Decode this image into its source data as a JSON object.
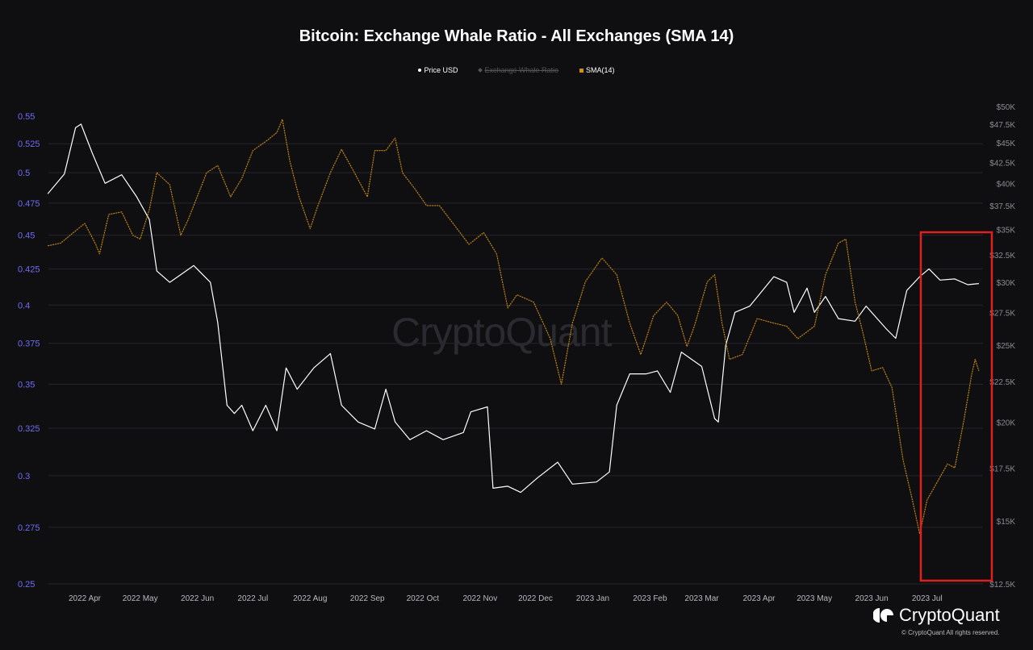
{
  "chart_data": {
    "type": "line",
    "title": "Bitcoin: Exchange Whale Ratio - All Exchanges (SMA 14)",
    "legend": [
      {
        "name": "Price USD",
        "color": "#ffffff",
        "visible": true
      },
      {
        "name": "Exchange Whale Ratio",
        "color": "#555555",
        "visible": false
      },
      {
        "name": "SMA(14)",
        "color": "#d4900a",
        "visible": true
      }
    ],
    "legend_position": "top-center",
    "grid": true,
    "x_ticks": [
      "2022 Apr",
      "2022 May",
      "2022 Jun",
      "2022 Jul",
      "2022 Aug",
      "2022 Sep",
      "2022 Oct",
      "2022 Nov",
      "2022 Dec",
      "2023 Jan",
      "2023 Feb",
      "2023 Mar",
      "2023 Apr",
      "2023 May",
      "2023 Jun",
      "2023 Jul"
    ],
    "y_left": {
      "scale": "log",
      "range": [
        0.25,
        0.55
      ],
      "ticks": [
        "0.55",
        "0.525",
        "0.5",
        "0.475",
        "0.45",
        "0.425",
        "0.4",
        "0.375",
        "0.35",
        "0.325",
        "0.3",
        "0.275",
        "0.25"
      ],
      "color": "#6f6cf2"
    },
    "y_right": {
      "scale": "log",
      "range": [
        12500,
        50000
      ],
      "ticks": [
        "$50K",
        "$47.5K",
        "$45K",
        "$42.5K",
        "$40K",
        "$37.5K",
        "$35K",
        "$32.5K",
        "$30K",
        "$27.5K",
        "$25K",
        "$22.5K",
        "$20K",
        "$17.5K",
        "$15K",
        "$12.5K"
      ]
    },
    "series": [
      {
        "name": "Price USD",
        "axis": "right",
        "color": "#ffffff",
        "points": [
          [
            "2022-03-12",
            38800
          ],
          [
            "2022-03-21",
            41100
          ],
          [
            "2022-03-27",
            47000
          ],
          [
            "2022-03-30",
            47500
          ],
          [
            "2022-04-05",
            43700
          ],
          [
            "2022-04-12",
            40000
          ],
          [
            "2022-04-21",
            41000
          ],
          [
            "2022-04-29",
            38500
          ],
          [
            "2022-05-06",
            36000
          ],
          [
            "2022-05-10",
            31000
          ],
          [
            "2022-05-17",
            30000
          ],
          [
            "2022-05-30",
            31500
          ],
          [
            "2022-06-08",
            30000
          ],
          [
            "2022-06-12",
            26700
          ],
          [
            "2022-06-17",
            21000
          ],
          [
            "2022-06-21",
            20500
          ],
          [
            "2022-06-25",
            21000
          ],
          [
            "2022-07-01",
            19500
          ],
          [
            "2022-07-08",
            21000
          ],
          [
            "2022-07-14",
            19500
          ],
          [
            "2022-07-19",
            23400
          ],
          [
            "2022-07-25",
            22000
          ],
          [
            "2022-08-03",
            23400
          ],
          [
            "2022-08-12",
            24400
          ],
          [
            "2022-08-18",
            21000
          ],
          [
            "2022-08-27",
            20000
          ],
          [
            "2022-09-05",
            19600
          ],
          [
            "2022-09-11",
            22000
          ],
          [
            "2022-09-16",
            20000
          ],
          [
            "2022-09-24",
            19000
          ],
          [
            "2022-10-03",
            19500
          ],
          [
            "2022-10-12",
            19000
          ],
          [
            "2022-10-23",
            19400
          ],
          [
            "2022-10-27",
            20600
          ],
          [
            "2022-11-05",
            20900
          ],
          [
            "2022-11-08",
            16500
          ],
          [
            "2022-11-16",
            16600
          ],
          [
            "2022-11-23",
            16300
          ],
          [
            "2022-12-02",
            17000
          ],
          [
            "2022-12-13",
            17800
          ],
          [
            "2022-12-21",
            16700
          ],
          [
            "2023-01-03",
            16800
          ],
          [
            "2023-01-10",
            17300
          ],
          [
            "2023-01-14",
            21000
          ],
          [
            "2023-01-21",
            23000
          ],
          [
            "2023-01-30",
            23000
          ],
          [
            "2023-02-05",
            23200
          ],
          [
            "2023-02-12",
            21800
          ],
          [
            "2023-02-18",
            24500
          ],
          [
            "2023-03-01",
            23500
          ],
          [
            "2023-03-08",
            20200
          ],
          [
            "2023-03-10",
            20000
          ],
          [
            "2023-03-14",
            25000
          ],
          [
            "2023-03-19",
            27500
          ],
          [
            "2023-03-27",
            28000
          ],
          [
            "2023-04-09",
            30500
          ],
          [
            "2023-04-16",
            30000
          ],
          [
            "2023-04-20",
            27500
          ],
          [
            "2023-04-27",
            29500
          ],
          [
            "2023-05-01",
            27500
          ],
          [
            "2023-05-07",
            28800
          ],
          [
            "2023-05-14",
            27000
          ],
          [
            "2023-05-23",
            26800
          ],
          [
            "2023-05-29",
            28000
          ],
          [
            "2023-06-09",
            26200
          ],
          [
            "2023-06-14",
            25500
          ],
          [
            "2023-06-20",
            29300
          ],
          [
            "2023-06-27",
            30500
          ],
          [
            "2023-07-02",
            31200
          ],
          [
            "2023-07-08",
            30200
          ],
          [
            "2023-07-16",
            30300
          ],
          [
            "2023-07-23",
            29800
          ],
          [
            "2023-07-29",
            29900
          ]
        ]
      },
      {
        "name": "SMA(14)",
        "axis": "left",
        "color": "#d4900a",
        "points": [
          [
            "2022-03-12",
            0.442
          ],
          [
            "2022-03-19",
            0.444
          ],
          [
            "2022-03-25",
            0.451
          ],
          [
            "2022-04-01",
            0.459
          ],
          [
            "2022-04-07",
            0.443
          ],
          [
            "2022-04-09",
            0.436
          ],
          [
            "2022-04-14",
            0.466
          ],
          [
            "2022-04-21",
            0.468
          ],
          [
            "2022-04-27",
            0.45
          ],
          [
            "2022-05-01",
            0.447
          ],
          [
            "2022-05-06",
            0.47
          ],
          [
            "2022-05-10",
            0.5
          ],
          [
            "2022-05-17",
            0.49
          ],
          [
            "2022-05-23",
            0.45
          ],
          [
            "2022-05-27",
            0.462
          ],
          [
            "2022-06-06",
            0.5
          ],
          [
            "2022-06-12",
            0.506
          ],
          [
            "2022-06-19",
            0.48
          ],
          [
            "2022-06-25",
            0.495
          ],
          [
            "2022-07-01",
            0.519
          ],
          [
            "2022-07-08",
            0.527
          ],
          [
            "2022-07-14",
            0.535
          ],
          [
            "2022-07-17",
            0.547
          ],
          [
            "2022-07-21",
            0.51
          ],
          [
            "2022-07-26",
            0.48
          ],
          [
            "2022-08-01",
            0.455
          ],
          [
            "2022-08-05",
            0.472
          ],
          [
            "2022-08-12",
            0.5
          ],
          [
            "2022-08-18",
            0.52
          ],
          [
            "2022-08-25",
            0.5
          ],
          [
            "2022-09-01",
            0.48
          ],
          [
            "2022-09-05",
            0.519
          ],
          [
            "2022-09-11",
            0.519
          ],
          [
            "2022-09-16",
            0.53
          ],
          [
            "2022-09-20",
            0.5
          ],
          [
            "2022-09-27",
            0.486
          ],
          [
            "2022-10-03",
            0.473
          ],
          [
            "2022-10-10",
            0.473
          ],
          [
            "2022-10-19",
            0.456
          ],
          [
            "2022-10-26",
            0.443
          ],
          [
            "2022-11-03",
            0.452
          ],
          [
            "2022-11-10",
            0.436
          ],
          [
            "2022-11-16",
            0.398
          ],
          [
            "2022-11-21",
            0.407
          ],
          [
            "2022-11-30",
            0.402
          ],
          [
            "2022-12-09",
            0.378
          ],
          [
            "2022-12-15",
            0.35
          ],
          [
            "2022-12-21",
            0.388
          ],
          [
            "2022-12-28",
            0.416
          ],
          [
            "2023-01-06",
            0.433
          ],
          [
            "2023-01-14",
            0.421
          ],
          [
            "2023-01-21",
            0.388
          ],
          [
            "2023-01-27",
            0.368
          ],
          [
            "2023-02-03",
            0.393
          ],
          [
            "2023-02-10",
            0.402
          ],
          [
            "2023-02-16",
            0.393
          ],
          [
            "2023-02-21",
            0.373
          ],
          [
            "2023-02-25",
            0.386
          ],
          [
            "2023-03-04",
            0.416
          ],
          [
            "2023-03-08",
            0.421
          ],
          [
            "2023-03-12",
            0.388
          ],
          [
            "2023-03-16",
            0.365
          ],
          [
            "2023-03-23",
            0.368
          ],
          [
            "2023-03-31",
            0.391
          ],
          [
            "2023-04-09",
            0.388
          ],
          [
            "2023-04-16",
            0.386
          ],
          [
            "2023-04-22",
            0.378
          ],
          [
            "2023-05-01",
            0.386
          ],
          [
            "2023-05-07",
            0.421
          ],
          [
            "2023-05-14",
            0.444
          ],
          [
            "2023-05-18",
            0.447
          ],
          [
            "2023-05-23",
            0.402
          ],
          [
            "2023-05-27",
            0.383
          ],
          [
            "2023-06-01",
            0.358
          ],
          [
            "2023-06-07",
            0.36
          ],
          [
            "2023-06-12",
            0.348
          ],
          [
            "2023-06-18",
            0.308
          ],
          [
            "2023-06-23",
            0.288
          ],
          [
            "2023-06-27",
            0.272
          ],
          [
            "2023-07-01",
            0.288
          ],
          [
            "2023-07-06",
            0.296
          ],
          [
            "2023-07-12",
            0.306
          ],
          [
            "2023-07-16",
            0.304
          ],
          [
            "2023-07-21",
            0.33
          ],
          [
            "2023-07-25",
            0.355
          ],
          [
            "2023-07-27",
            0.365
          ],
          [
            "2023-07-29",
            0.358
          ]
        ]
      }
    ],
    "highlight_color": "#e0201f"
  },
  "watermark": "CryptoQuant",
  "brand": {
    "logo_text": "CryptoQuant",
    "copyright": "© CryptoQuant All rights reserved."
  }
}
